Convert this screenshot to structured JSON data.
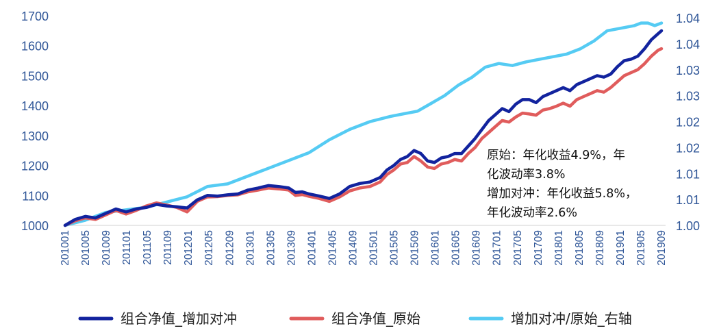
{
  "chart_data": {
    "type": "line",
    "title": "",
    "xlabel": "",
    "ylabel": "",
    "y2label": "",
    "ylim": [
      1000,
      1700
    ],
    "y2lim": [
      1.0,
      1.04
    ],
    "yticks": [
      "1000",
      "1100",
      "1200",
      "1300",
      "1400",
      "1500",
      "1600",
      "1700"
    ],
    "y2ticks": [
      "1.00",
      "1.01",
      "1.01",
      "1.02",
      "1.02",
      "1.03",
      "1.03",
      "1.04",
      "1.04"
    ],
    "x_tick_labels": [
      "201001",
      "201005",
      "201009",
      "201101",
      "201105",
      "201109",
      "201201",
      "201205",
      "201209",
      "201301",
      "201305",
      "201309",
      "201401",
      "201405",
      "201409",
      "201501",
      "201505",
      "201509",
      "201601",
      "201605",
      "201609",
      "201701",
      "201705",
      "201709",
      "201801",
      "201805",
      "201809",
      "201901",
      "201905",
      "201909"
    ],
    "x_count": 117,
    "series": [
      {
        "name": "组合净值_增加对冲",
        "axis": "left",
        "color": "#12239e",
        "points": [
          [
            0,
            1000
          ],
          [
            3,
            1020
          ],
          [
            6,
            1030
          ],
          [
            9,
            1025
          ],
          [
            12,
            1040
          ],
          [
            15,
            1055
          ],
          [
            18,
            1045
          ],
          [
            21,
            1055
          ],
          [
            24,
            1060
          ],
          [
            27,
            1070
          ],
          [
            30,
            1065
          ],
          [
            33,
            1062
          ],
          [
            36,
            1058
          ],
          [
            39,
            1085
          ],
          [
            42,
            1100
          ],
          [
            45,
            1098
          ],
          [
            48,
            1102
          ],
          [
            51,
            1105
          ],
          [
            54,
            1118
          ],
          [
            57,
            1125
          ],
          [
            60,
            1133
          ],
          [
            63,
            1130
          ],
          [
            66,
            1125
          ],
          [
            68,
            1110
          ],
          [
            70,
            1112
          ],
          [
            72,
            1105
          ],
          [
            75,
            1098
          ],
          [
            78,
            1090
          ],
          [
            81,
            1105
          ],
          [
            84,
            1130
          ],
          [
            87,
            1140
          ],
          [
            90,
            1145
          ],
          [
            93,
            1160
          ],
          [
            95,
            1185
          ],
          [
            97,
            1200
          ],
          [
            99,
            1220
          ],
          [
            101,
            1230
          ],
          [
            103,
            1250
          ],
          [
            105,
            1240
          ],
          [
            107,
            1215
          ],
          [
            109,
            1210
          ],
          [
            111,
            1225
          ],
          [
            113,
            1230
          ],
          [
            115,
            1240
          ],
          [
            117,
            1240
          ],
          [
            119,
            1265
          ],
          [
            121,
            1290
          ],
          [
            123,
            1320
          ],
          [
            125,
            1350
          ],
          [
            127,
            1370
          ],
          [
            129,
            1390
          ],
          [
            131,
            1380
          ],
          [
            133,
            1405
          ],
          [
            135,
            1420
          ],
          [
            137,
            1420
          ],
          [
            139,
            1410
          ],
          [
            141,
            1430
          ],
          [
            143,
            1440
          ],
          [
            145,
            1450
          ],
          [
            147,
            1460
          ],
          [
            149,
            1450
          ],
          [
            151,
            1470
          ],
          [
            153,
            1480
          ],
          [
            155,
            1490
          ],
          [
            157,
            1500
          ],
          [
            159,
            1495
          ],
          [
            161,
            1505
          ],
          [
            163,
            1530
          ],
          [
            165,
            1550
          ],
          [
            167,
            1555
          ],
          [
            169,
            1565
          ],
          [
            171,
            1590
          ],
          [
            173,
            1620
          ],
          [
            175,
            1640
          ],
          [
            176,
            1650
          ]
        ]
      },
      {
        "name": "组合净值_原始",
        "axis": "left",
        "color": "#e05c5c",
        "points": [
          [
            0,
            1000
          ],
          [
            3,
            1015
          ],
          [
            6,
            1025
          ],
          [
            9,
            1020
          ],
          [
            12,
            1035
          ],
          [
            15,
            1050
          ],
          [
            18,
            1038
          ],
          [
            21,
            1050
          ],
          [
            24,
            1065
          ],
          [
            27,
            1075
          ],
          [
            30,
            1068
          ],
          [
            33,
            1060
          ],
          [
            36,
            1045
          ],
          [
            39,
            1080
          ],
          [
            42,
            1095
          ],
          [
            45,
            1096
          ],
          [
            48,
            1100
          ],
          [
            51,
            1102
          ],
          [
            54,
            1112
          ],
          [
            57,
            1118
          ],
          [
            60,
            1125
          ],
          [
            63,
            1122
          ],
          [
            66,
            1118
          ],
          [
            68,
            1100
          ],
          [
            70,
            1103
          ],
          [
            72,
            1097
          ],
          [
            75,
            1090
          ],
          [
            78,
            1080
          ],
          [
            81,
            1095
          ],
          [
            84,
            1115
          ],
          [
            87,
            1125
          ],
          [
            90,
            1130
          ],
          [
            93,
            1145
          ],
          [
            95,
            1170
          ],
          [
            97,
            1185
          ],
          [
            99,
            1205
          ],
          [
            101,
            1210
          ],
          [
            103,
            1230
          ],
          [
            105,
            1215
          ],
          [
            107,
            1195
          ],
          [
            109,
            1190
          ],
          [
            111,
            1205
          ],
          [
            113,
            1210
          ],
          [
            115,
            1220
          ],
          [
            117,
            1215
          ],
          [
            119,
            1240
          ],
          [
            121,
            1260
          ],
          [
            123,
            1290
          ],
          [
            125,
            1310
          ],
          [
            127,
            1330
          ],
          [
            129,
            1350
          ],
          [
            131,
            1345
          ],
          [
            133,
            1362
          ],
          [
            135,
            1375
          ],
          [
            137,
            1372
          ],
          [
            139,
            1368
          ],
          [
            141,
            1385
          ],
          [
            143,
            1390
          ],
          [
            145,
            1398
          ],
          [
            147,
            1408
          ],
          [
            149,
            1398
          ],
          [
            151,
            1420
          ],
          [
            153,
            1430
          ],
          [
            155,
            1440
          ],
          [
            157,
            1450
          ],
          [
            159,
            1445
          ],
          [
            161,
            1460
          ],
          [
            163,
            1480
          ],
          [
            165,
            1500
          ],
          [
            167,
            1510
          ],
          [
            169,
            1520
          ],
          [
            171,
            1540
          ],
          [
            173,
            1565
          ],
          [
            175,
            1585
          ],
          [
            176,
            1590
          ]
        ]
      },
      {
        "name": "增加对冲/原始_右轴",
        "axis": "right",
        "color": "#55cbf3",
        "points": [
          [
            0,
            1.0
          ],
          [
            6,
            1.001
          ],
          [
            12,
            1.0025
          ],
          [
            18,
            1.003
          ],
          [
            24,
            1.0035
          ],
          [
            30,
            1.0045
          ],
          [
            36,
            1.0055
          ],
          [
            42,
            1.0075
          ],
          [
            48,
            1.008
          ],
          [
            54,
            1.0095
          ],
          [
            60,
            1.011
          ],
          [
            66,
            1.0125
          ],
          [
            72,
            1.014
          ],
          [
            78,
            1.0165
          ],
          [
            84,
            1.0185
          ],
          [
            90,
            1.02
          ],
          [
            96,
            1.021
          ],
          [
            100,
            1.0215
          ],
          [
            104,
            1.022
          ],
          [
            108,
            1.0235
          ],
          [
            112,
            1.025
          ],
          [
            116,
            1.027
          ],
          [
            120,
            1.0285
          ],
          [
            124,
            1.0305
          ],
          [
            128,
            1.0312
          ],
          [
            132,
            1.0308
          ],
          [
            136,
            1.0315
          ],
          [
            140,
            1.032
          ],
          [
            144,
            1.0325
          ],
          [
            148,
            1.033
          ],
          [
            152,
            1.034
          ],
          [
            156,
            1.0355
          ],
          [
            160,
            1.0375
          ],
          [
            164,
            1.038
          ],
          [
            168,
            1.0385
          ],
          [
            170,
            1.039
          ],
          [
            172,
            1.039
          ],
          [
            174,
            1.0385
          ],
          [
            176,
            1.039
          ]
        ]
      }
    ],
    "annotation": [
      "原始：年化收益4.9%，年",
      "化波动率3.8%",
      "增加对冲：年化收益5.8%，",
      "年化波动率2.6%"
    ]
  }
}
